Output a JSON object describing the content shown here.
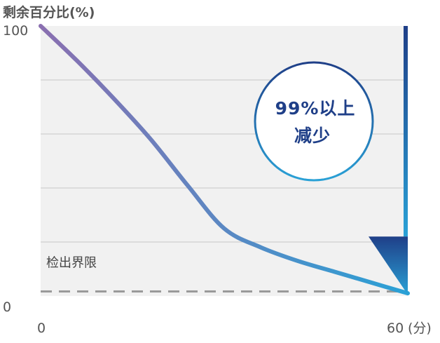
{
  "chart_data": {
    "type": "line",
    "title": "",
    "ylabel": "剩余百分比(%)",
    "xlabel": "",
    "xlim": [
      0,
      60
    ],
    "ylim": [
      0,
      100
    ],
    "x_ticks": [
      {
        "value": 0,
        "label": "0"
      },
      {
        "value": 60,
        "label": "60"
      }
    ],
    "x_unit": "(分)",
    "y_ticks": [
      {
        "value": 0,
        "label": "0"
      },
      {
        "value": 100,
        "label": "100"
      }
    ],
    "grid_values": [
      20,
      40,
      60,
      80
    ],
    "grid": true,
    "series": [
      {
        "name": "",
        "color_start": "#8a6fb0",
        "color_end": "#2aa1d6",
        "x": [
          0,
          6,
          12,
          18,
          24,
          30,
          36,
          42,
          48,
          54,
          60
        ],
        "y": [
          100,
          87,
          73,
          58,
          41,
          25,
          18,
          13,
          9,
          5,
          1
        ]
      }
    ],
    "detection_limit": {
      "value": 3,
      "label": "检出界限",
      "color": "#9a9a9a"
    },
    "annotation": {
      "lines": [
        "99%以上",
        "减少"
      ],
      "text_color": "#1f3f88",
      "arrow_color_top": "#1f3f88",
      "arrow_color_bottom": "#2aa1d6"
    },
    "plot_background": "#f1f1f1",
    "gridline_color": "#c8c8c8"
  }
}
